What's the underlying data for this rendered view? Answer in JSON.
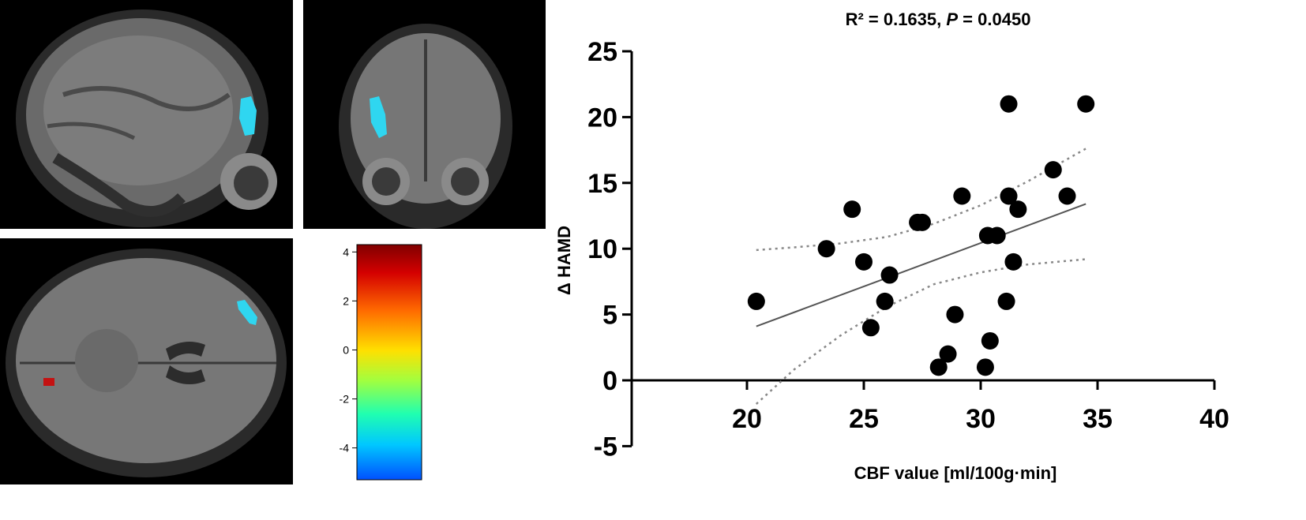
{
  "colorbar": {
    "ticks": [
      "4",
      "2",
      "0",
      "-2",
      "-4"
    ],
    "tick_values": [
      4,
      2,
      0,
      -2,
      -4
    ],
    "range": [
      -5.3,
      4.3
    ]
  },
  "scan_colors": {
    "negative_cluster": "#2fd6f0",
    "positive_cluster": "#c41212"
  },
  "chart_data": {
    "type": "scatter",
    "title_r2_label": "R² = 0.1635, ",
    "title_p_italic": "P",
    "title_p_value": " = 0.0450",
    "xlabel": "CBF value [ml/100g·min]",
    "ylabel": "Δ HAMD",
    "xlim": [
      15,
      40
    ],
    "ylim": [
      -5,
      25
    ],
    "x_ticks": [
      20,
      25,
      30,
      35,
      40
    ],
    "y_ticks": [
      -5,
      0,
      5,
      10,
      15,
      20,
      25
    ],
    "points": [
      {
        "x": 20.4,
        "y": 6
      },
      {
        "x": 23.4,
        "y": 10
      },
      {
        "x": 24.5,
        "y": 13
      },
      {
        "x": 25.0,
        "y": 9
      },
      {
        "x": 25.3,
        "y": 4
      },
      {
        "x": 25.9,
        "y": 6
      },
      {
        "x": 26.1,
        "y": 8
      },
      {
        "x": 27.3,
        "y": 12
      },
      {
        "x": 27.5,
        "y": 12
      },
      {
        "x": 28.2,
        "y": 1
      },
      {
        "x": 28.6,
        "y": 2
      },
      {
        "x": 28.9,
        "y": 5
      },
      {
        "x": 29.2,
        "y": 14
      },
      {
        "x": 30.2,
        "y": 1
      },
      {
        "x": 30.3,
        "y": 11
      },
      {
        "x": 30.4,
        "y": 3
      },
      {
        "x": 30.7,
        "y": 11
      },
      {
        "x": 31.1,
        "y": 6
      },
      {
        "x": 31.2,
        "y": 14
      },
      {
        "x": 31.2,
        "y": 21
      },
      {
        "x": 31.4,
        "y": 9
      },
      {
        "x": 31.6,
        "y": 13
      },
      {
        "x": 33.1,
        "y": 16
      },
      {
        "x": 33.7,
        "y": 14
      },
      {
        "x": 34.5,
        "y": 21
      }
    ],
    "fit_line": {
      "x": [
        20.4,
        34.5
      ],
      "y": [
        4.1,
        13.4
      ]
    },
    "ci_upper": {
      "x": [
        20.4,
        22,
        24,
        26,
        28,
        30,
        32,
        34.5
      ],
      "y": [
        9.9,
        10.1,
        10.4,
        10.9,
        11.9,
        13.3,
        15.1,
        17.6
      ]
    },
    "ci_lower": {
      "x": [
        20.4,
        22,
        24,
        26,
        28,
        30,
        32,
        34.5
      ],
      "y": [
        -1.8,
        0.8,
        3.4,
        5.6,
        7.3,
        8.2,
        8.8,
        9.2
      ]
    },
    "marker_color": "#000000",
    "line_color": "#555555",
    "ci_color": "#888888"
  }
}
